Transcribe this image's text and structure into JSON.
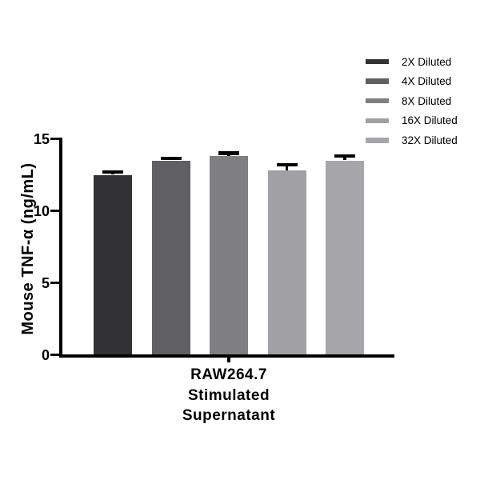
{
  "chart_data": {
    "type": "bar",
    "title": "",
    "categories": [
      "2X Diluted",
      "4X Diluted",
      "8X Diluted",
      "16X Diluted",
      "32X Diluted"
    ],
    "series": [
      {
        "name": "Mouse TNF-α (ng/mL)",
        "values": [
          12.5,
          13.5,
          13.8,
          12.8,
          13.5
        ],
        "errors_upper_sd": [
          0.2,
          0.15,
          0.2,
          0.4,
          0.3
        ]
      }
    ],
    "bar_colors": [
      "#323235",
      "#606063",
      "#7f7f82",
      "#a1a1a5",
      "#a6a6aa"
    ],
    "error_bar_color": "#000000",
    "axis_color": "#000000",
    "xlabel": "RAW264.7\nStimulated\nSupernatant",
    "ylabel": "Mouse TNF-α (ng/mL)",
    "ylim": [
      0,
      15
    ],
    "yticks": [
      0,
      5,
      10,
      15
    ],
    "grid": false,
    "legend_position": "top-right",
    "error_bars": "upper, cap style T"
  }
}
